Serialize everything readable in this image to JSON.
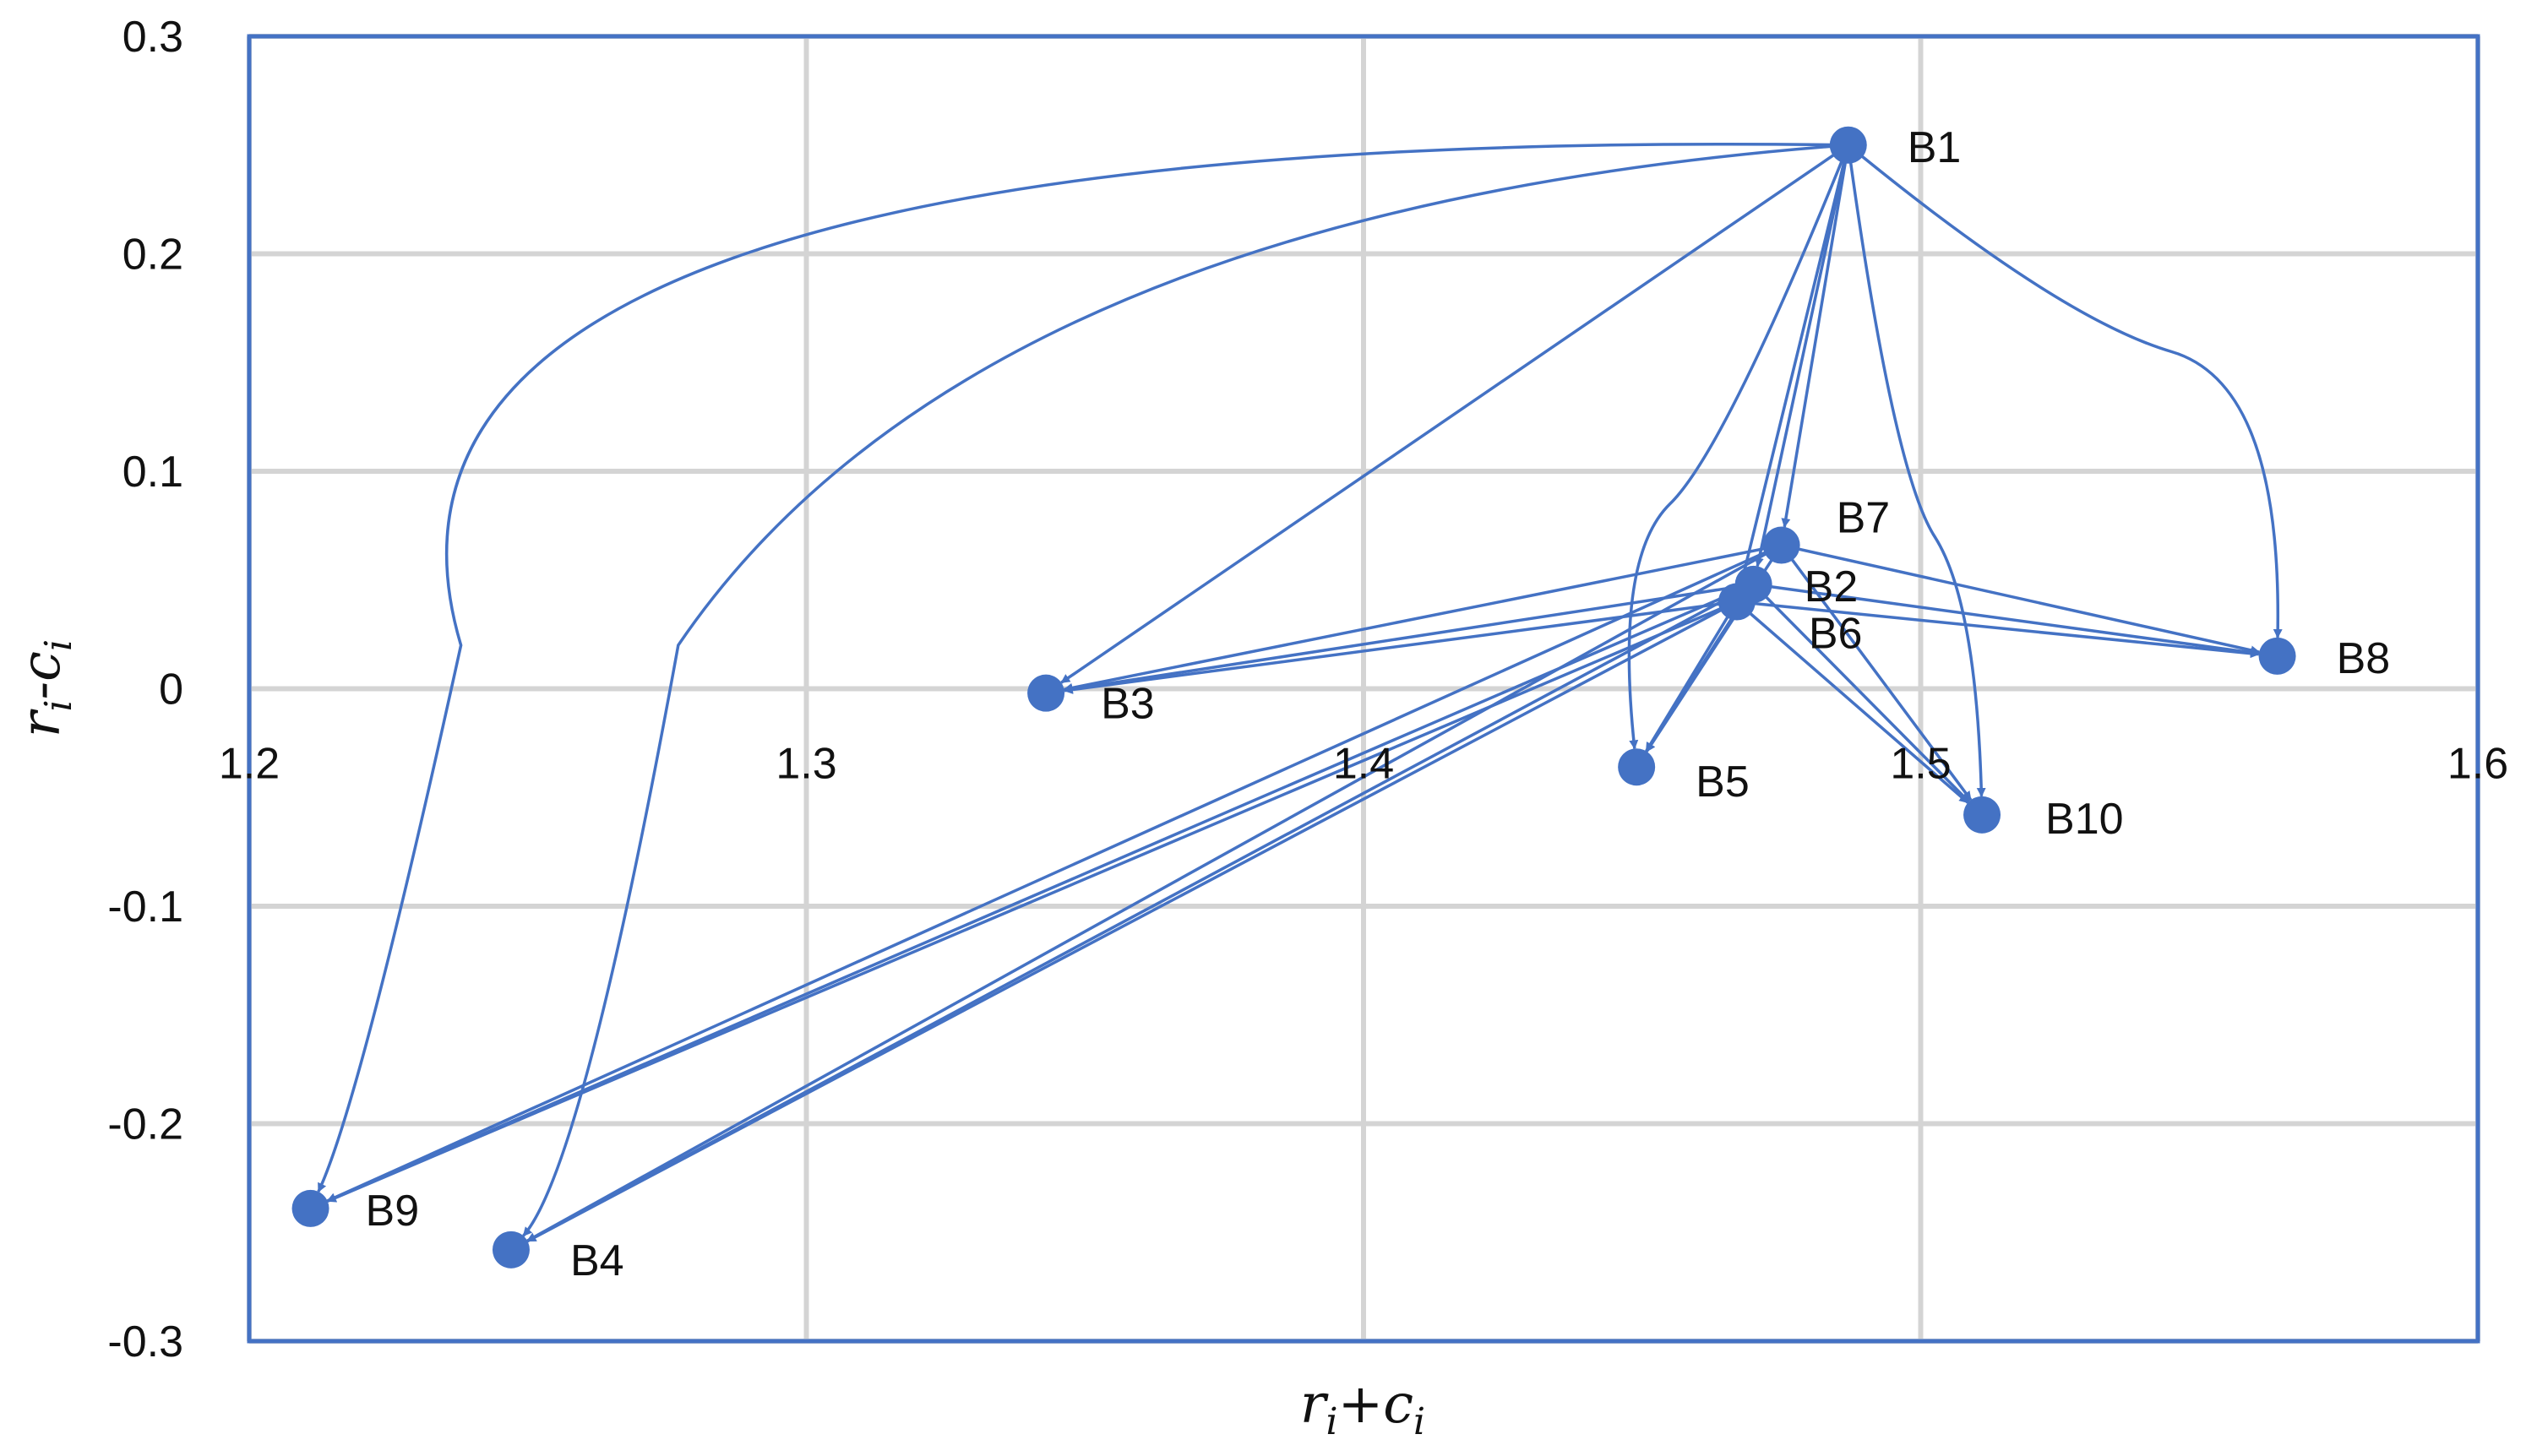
{
  "chart_data": {
    "type": "scatter",
    "xlabel": {
      "base1": "r",
      "sub1": "i",
      "op": "+",
      "base2": "c",
      "sub2": "i"
    },
    "ylabel": {
      "base1": "r",
      "sub1": "i",
      "op": "-",
      "base2": "c",
      "sub2": "i"
    },
    "xlim": [
      1.2,
      1.6
    ],
    "ylim": [
      -0.3,
      0.3
    ],
    "x_ticks": [
      "1.2",
      "1.3",
      "1.4",
      "1.5",
      "1.6"
    ],
    "y_ticks": [
      "0.3",
      "0.2",
      "0.1",
      "0",
      "-0.1",
      "-0.2",
      "-0.3"
    ],
    "x_tick_values": [
      1.2,
      1.3,
      1.4,
      1.5,
      1.6
    ],
    "y_tick_values": [
      0.3,
      0.2,
      0.1,
      0,
      -0.1,
      -0.2,
      -0.3
    ],
    "grid": true,
    "point_color": "#4472c4",
    "points": [
      {
        "label": "B1",
        "x": 1.487,
        "y": 0.25
      },
      {
        "label": "B2",
        "x": 1.47,
        "y": 0.048
      },
      {
        "label": "B3",
        "x": 1.343,
        "y": -0.002
      },
      {
        "label": "B4",
        "x": 1.247,
        "y": -0.258
      },
      {
        "label": "B5",
        "x": 1.449,
        "y": -0.036
      },
      {
        "label": "B6",
        "x": 1.467,
        "y": 0.04
      },
      {
        "label": "B7",
        "x": 1.475,
        "y": 0.066
      },
      {
        "label": "B8",
        "x": 1.564,
        "y": 0.015
      },
      {
        "label": "B9",
        "x": 1.211,
        "y": -0.239
      },
      {
        "label": "B10",
        "x": 1.511,
        "y": -0.058
      }
    ],
    "edges": [
      {
        "from": "B1",
        "to": "B9",
        "curve": [
          [
            1.238,
            0.02
          ],
          [
            1.22,
            -0.19
          ]
        ],
        "via": [
          1.21,
          0.26
        ]
      },
      {
        "from": "B1",
        "to": "B4",
        "curve": [
          [
            1.277,
            0.02
          ],
          [
            1.26,
            -0.22
          ]
        ],
        "via": [
          1.33,
          0.22
        ]
      },
      {
        "from": "B1",
        "to": "B3"
      },
      {
        "from": "B1",
        "to": "B7"
      },
      {
        "from": "B1",
        "to": "B2"
      },
      {
        "from": "B1",
        "to": "B6"
      },
      {
        "from": "B1",
        "to": "B5",
        "curve": [
          [
            1.465,
            0.11
          ],
          [
            1.445,
            0.06
          ]
        ]
      },
      {
        "from": "B1",
        "to": "B10",
        "curve": [
          [
            1.495,
            0.1
          ],
          [
            1.51,
            0.04
          ]
        ]
      },
      {
        "from": "B1",
        "to": "B8",
        "curve": [
          [
            1.525,
            0.17
          ],
          [
            1.565,
            0.14
          ]
        ]
      },
      {
        "from": "B7",
        "to": "B3"
      },
      {
        "from": "B2",
        "to": "B3"
      },
      {
        "from": "B6",
        "to": "B3"
      },
      {
        "from": "B7",
        "to": "B8"
      },
      {
        "from": "B2",
        "to": "B8"
      },
      {
        "from": "B6",
        "to": "B8"
      },
      {
        "from": "B7",
        "to": "B9"
      },
      {
        "from": "B2",
        "to": "B9"
      },
      {
        "from": "B6",
        "to": "B9"
      },
      {
        "from": "B7",
        "to": "B4"
      },
      {
        "from": "B2",
        "to": "B4"
      },
      {
        "from": "B6",
        "to": "B4"
      },
      {
        "from": "B7",
        "to": "B5"
      },
      {
        "from": "B2",
        "to": "B5"
      },
      {
        "from": "B6",
        "to": "B5"
      },
      {
        "from": "B7",
        "to": "B10"
      },
      {
        "from": "B2",
        "to": "B10"
      },
      {
        "from": "B6",
        "to": "B10"
      }
    ]
  }
}
